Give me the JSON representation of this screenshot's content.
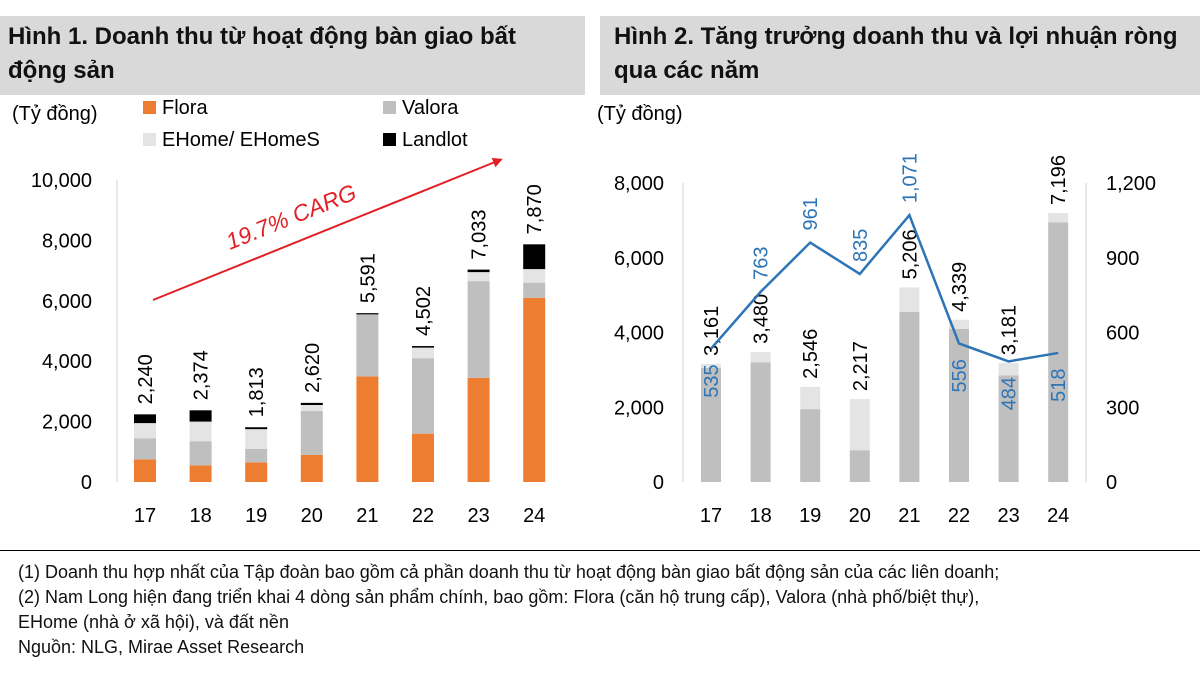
{
  "figure1": {
    "title": "Hình 1. Doanh thu từ hoạt động bàn giao bất động sản",
    "unit": "(Tỷ đồng)",
    "legend": [
      {
        "label": "Flora",
        "color": "#ed7d31"
      },
      {
        "label": "Valora",
        "color": "#bfbfbf"
      },
      {
        "label": "EHome/ EHomeS",
        "color": "#e4e4e4"
      },
      {
        "label": "Landlot",
        "color": "#000000"
      }
    ],
    "annotation": "19.7% CARG"
  },
  "figure2": {
    "title": "Hình 2. Tăng trưởng doanh thu và lợi nhuận ròng qua các năm",
    "unit": "(Tỷ đồng)"
  },
  "chart_data": [
    {
      "type": "bar",
      "stacked": true,
      "categories": [
        "17",
        "18",
        "19",
        "20",
        "21",
        "22",
        "23",
        "24"
      ],
      "series": [
        {
          "name": "Flora",
          "color": "#ed7d31",
          "values": [
            750,
            550,
            650,
            900,
            3500,
            1600,
            3450,
            6100
          ]
        },
        {
          "name": "Valora",
          "color": "#bfbfbf",
          "values": [
            700,
            800,
            450,
            1450,
            2050,
            2500,
            3200,
            500
          ]
        },
        {
          "name": "EHome/ EHomeS",
          "color": "#e4e4e4",
          "values": [
            500,
            650,
            650,
            200,
            0,
            350,
            300,
            450
          ]
        },
        {
          "name": "Landlot",
          "color": "#000000",
          "values": [
            290,
            374,
            63,
            70,
            41,
            52,
            83,
            820
          ]
        }
      ],
      "totals": [
        "2,240",
        "2,374",
        "1,813",
        "2,620",
        "5,591",
        "4,502",
        "7,033",
        "7,870"
      ],
      "yticks": [
        "0",
        "2,000",
        "4,000",
        "6,000",
        "8,000",
        "10,000"
      ],
      "ylim": [
        0,
        10000
      ],
      "grid": false,
      "legend_position": "top"
    },
    {
      "type": "bar+line",
      "categories": [
        "17",
        "18",
        "19",
        "20",
        "21",
        "22",
        "23",
        "24"
      ],
      "bars": {
        "axis": "left",
        "ylim": [
          0,
          8000
        ],
        "yticks": [
          "0",
          "2,000",
          "4,000",
          "6,000",
          "8,000"
        ],
        "dark_color": "#bfbfbf",
        "light_color": "#e4e4e4",
        "dark_values": [
          3050,
          3200,
          1950,
          850,
          4550,
          4100,
          2850,
          6950
        ],
        "light_values": [
          111,
          280,
          596,
          1367,
          656,
          239,
          331,
          246
        ],
        "labels": [
          "3,161",
          "3,480",
          "2,546",
          "2,217",
          "5,206",
          "4,339",
          "3,181",
          "7,196"
        ]
      },
      "line": {
        "axis": "right",
        "color": "#2e75b6",
        "ylim": [
          0,
          1200
        ],
        "yticks": [
          "0",
          "300",
          "600",
          "900",
          "1,200"
        ],
        "values": [
          535,
          763,
          961,
          835,
          1071,
          556,
          484,
          518
        ],
        "labels": [
          "535",
          "763",
          "961",
          "835",
          "1,071",
          "556",
          "484",
          "518"
        ]
      },
      "grid": false
    }
  ],
  "notes": [
    "(1) Doanh thu hợp nhất của Tập đoàn bao gồm cả phần doanh thu từ hoạt động bàn giao bất động sản của các liên doanh;",
    "(2) Nam Long hiện đang triển khai 4 dòng sản phẩm chính, bao gồm: Flora (căn hộ trung cấp), Valora (nhà phố/biệt thự),",
    "EHome (nhà ở xã hội), và đất nền",
    "Nguồn: NLG, Mirae Asset Research"
  ]
}
